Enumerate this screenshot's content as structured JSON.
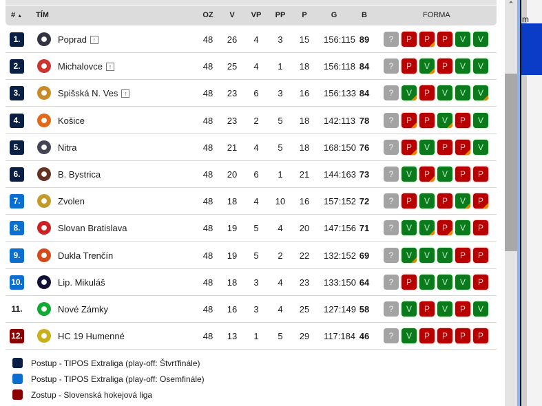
{
  "header": {
    "rank": "#",
    "sort_indicator": "▲",
    "team": "TÍM",
    "oz": "OZ",
    "v": "V",
    "vp": "VP",
    "pp": "PP",
    "p": "P",
    "g": "G",
    "b": "B",
    "forma": "FORMA"
  },
  "colors": {
    "quarterfinal": "#0a1f44",
    "eighthfinal": "#0a6fd1",
    "relegation": "#8b0000",
    "win": "#0b7a1c",
    "loss": "#b80000",
    "unknown": "#a3a3a3",
    "overtime_corner": "#e38a00"
  },
  "rows": [
    {
      "rank": "1.",
      "status": "quarterfinal",
      "team": "Poprad",
      "up": true,
      "oz": "48",
      "v": "26",
      "vp": "4",
      "pp": "3",
      "p": "15",
      "g": "156:115",
      "b": "89",
      "form": [
        [
          "?",
          0
        ],
        [
          "P",
          0
        ],
        [
          "P",
          1
        ],
        [
          "P",
          0
        ],
        [
          "V",
          0
        ],
        [
          "V",
          0
        ]
      ]
    },
    {
      "rank": "2.",
      "status": "quarterfinal",
      "team": "Michalovce",
      "up": true,
      "oz": "48",
      "v": "25",
      "vp": "4",
      "pp": "1",
      "p": "18",
      "g": "156:118",
      "b": "84",
      "form": [
        [
          "?",
          0
        ],
        [
          "P",
          0
        ],
        [
          "V",
          1
        ],
        [
          "P",
          0
        ],
        [
          "V",
          0
        ],
        [
          "V",
          0
        ]
      ]
    },
    {
      "rank": "3.",
      "status": "quarterfinal",
      "team": "Spišská N. Ves",
      "up": true,
      "oz": "48",
      "v": "23",
      "vp": "6",
      "pp": "3",
      "p": "16",
      "g": "156:133",
      "b": "84",
      "form": [
        [
          "?",
          0
        ],
        [
          "V",
          1
        ],
        [
          "P",
          0
        ],
        [
          "V",
          0
        ],
        [
          "V",
          0
        ],
        [
          "V",
          1
        ]
      ]
    },
    {
      "rank": "4.",
      "status": "quarterfinal",
      "team": "Košice",
      "up": false,
      "oz": "48",
      "v": "23",
      "vp": "2",
      "pp": "5",
      "p": "18",
      "g": "142:113",
      "b": "78",
      "form": [
        [
          "?",
          0
        ],
        [
          "P",
          1
        ],
        [
          "P",
          0
        ],
        [
          "V",
          1
        ],
        [
          "P",
          0
        ],
        [
          "V",
          0
        ]
      ]
    },
    {
      "rank": "5.",
      "status": "quarterfinal",
      "team": "Nitra",
      "up": false,
      "oz": "48",
      "v": "21",
      "vp": "4",
      "pp": "5",
      "p": "18",
      "g": "168:150",
      "b": "76",
      "form": [
        [
          "?",
          0
        ],
        [
          "P",
          1
        ],
        [
          "V",
          0
        ],
        [
          "P",
          0
        ],
        [
          "P",
          1
        ],
        [
          "V",
          0
        ]
      ]
    },
    {
      "rank": "6.",
      "status": "quarterfinal",
      "team": "B. Bystrica",
      "up": false,
      "oz": "48",
      "v": "20",
      "vp": "6",
      "pp": "1",
      "p": "21",
      "g": "144:163",
      "b": "73",
      "form": [
        [
          "?",
          0
        ],
        [
          "V",
          0
        ],
        [
          "P",
          1
        ],
        [
          "V",
          0
        ],
        [
          "P",
          0
        ],
        [
          "P",
          0
        ]
      ]
    },
    {
      "rank": "7.",
      "status": "eighthfinal",
      "team": "Zvolen",
      "up": false,
      "oz": "48",
      "v": "18",
      "vp": "4",
      "pp": "10",
      "p": "16",
      "g": "157:152",
      "b": "72",
      "form": [
        [
          "?",
          0
        ],
        [
          "P",
          0
        ],
        [
          "V",
          0
        ],
        [
          "P",
          0
        ],
        [
          "V",
          1
        ],
        [
          "P",
          1
        ]
      ]
    },
    {
      "rank": "8.",
      "status": "eighthfinal",
      "team": "Slovan Bratislava",
      "up": false,
      "oz": "48",
      "v": "19",
      "vp": "5",
      "pp": "4",
      "p": "20",
      "g": "147:156",
      "b": "71",
      "form": [
        [
          "?",
          0
        ],
        [
          "V",
          0
        ],
        [
          "V",
          1
        ],
        [
          "P",
          1
        ],
        [
          "V",
          0
        ],
        [
          "P",
          0
        ]
      ]
    },
    {
      "rank": "9.",
      "status": "eighthfinal",
      "team": "Dukla Trenčín",
      "up": false,
      "oz": "48",
      "v": "19",
      "vp": "5",
      "pp": "2",
      "p": "22",
      "g": "132:152",
      "b": "69",
      "form": [
        [
          "?",
          0
        ],
        [
          "V",
          1
        ],
        [
          "V",
          0
        ],
        [
          "V",
          0
        ],
        [
          "P",
          0
        ],
        [
          "P",
          0
        ]
      ]
    },
    {
      "rank": "10.",
      "status": "eighthfinal",
      "team": "Lip. Mikuláš",
      "up": false,
      "oz": "48",
      "v": "18",
      "vp": "3",
      "pp": "4",
      "p": "23",
      "g": "133:150",
      "b": "64",
      "form": [
        [
          "?",
          0
        ],
        [
          "P",
          0
        ],
        [
          "V",
          0
        ],
        [
          "V",
          0
        ],
        [
          "V",
          0
        ],
        [
          "P",
          0
        ]
      ]
    },
    {
      "rank": "11.",
      "status": "none",
      "team": "Nové Zámky",
      "up": false,
      "oz": "48",
      "v": "16",
      "vp": "3",
      "pp": "4",
      "p": "25",
      "g": "127:149",
      "b": "58",
      "form": [
        [
          "?",
          0
        ],
        [
          "V",
          0
        ],
        [
          "P",
          0
        ],
        [
          "V",
          0
        ],
        [
          "P",
          0
        ],
        [
          "V",
          0
        ]
      ]
    },
    {
      "rank": "12.",
      "status": "relegation",
      "team": "HC 19 Humenné",
      "up": false,
      "oz": "48",
      "v": "13",
      "vp": "1",
      "pp": "5",
      "p": "29",
      "g": "117:184",
      "b": "46",
      "form": [
        [
          "?",
          0
        ],
        [
          "V",
          0
        ],
        [
          "P",
          0
        ],
        [
          "P",
          0
        ],
        [
          "P",
          0
        ],
        [
          "P",
          0
        ]
      ]
    }
  ],
  "legend": [
    {
      "status": "quarterfinal",
      "label": "Postup - TIPOS Extraliga (play-off: Štvrťfinále)"
    },
    {
      "status": "eighthfinal",
      "label": "Postup - TIPOS Extraliga (play-off: Osemfinále)"
    },
    {
      "status": "relegation",
      "label": "Zostup - Slovenská hokejová liga"
    }
  ],
  "background_window": {
    "text": "m"
  }
}
